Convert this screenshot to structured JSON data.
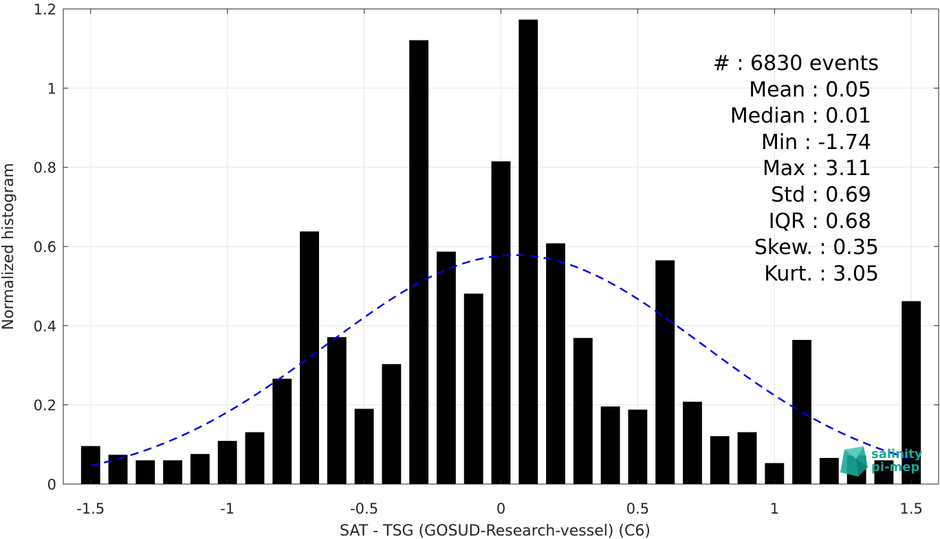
{
  "chart_data": {
    "type": "bar",
    "xlabel": "SAT - TSG (GOSUD-Research-vessel) (C6)",
    "ylabel": "Normalized histogram",
    "xlim": [
      -1.6,
      1.6
    ],
    "ylim": [
      0,
      1.2
    ],
    "x_ticks": [
      "-1.5",
      "-1",
      "-0.5",
      "0",
      "0.5",
      "1",
      "1.5"
    ],
    "x_tick_values": [
      -1.5,
      -1,
      -0.5,
      0,
      0.5,
      1,
      1.5
    ],
    "y_ticks": [
      "0",
      "0.2",
      "0.4",
      "0.6",
      "0.8",
      "1",
      "1.2"
    ],
    "y_tick_values": [
      0,
      0.2,
      0.4,
      0.6,
      0.8,
      1,
      1.2
    ],
    "grid": true,
    "bar_width": 0.07,
    "bars": [
      {
        "x": -1.5,
        "y": 0.096
      },
      {
        "x": -1.4,
        "y": 0.074
      },
      {
        "x": -1.3,
        "y": 0.06
      },
      {
        "x": -1.2,
        "y": 0.06
      },
      {
        "x": -1.1,
        "y": 0.076
      },
      {
        "x": -1.0,
        "y": 0.109
      },
      {
        "x": -0.9,
        "y": 0.131
      },
      {
        "x": -0.8,
        "y": 0.266
      },
      {
        "x": -0.7,
        "y": 0.638
      },
      {
        "x": -0.6,
        "y": 0.371
      },
      {
        "x": -0.5,
        "y": 0.19
      },
      {
        "x": -0.4,
        "y": 0.303
      },
      {
        "x": -0.3,
        "y": 1.121
      },
      {
        "x": -0.2,
        "y": 0.587
      },
      {
        "x": -0.1,
        "y": 0.481
      },
      {
        "x": 0.0,
        "y": 0.815
      },
      {
        "x": 0.1,
        "y": 1.173
      },
      {
        "x": 0.2,
        "y": 0.608
      },
      {
        "x": 0.3,
        "y": 0.369
      },
      {
        "x": 0.4,
        "y": 0.196
      },
      {
        "x": 0.5,
        "y": 0.188
      },
      {
        "x": 0.6,
        "y": 0.565
      },
      {
        "x": 0.7,
        "y": 0.208
      },
      {
        "x": 0.8,
        "y": 0.121
      },
      {
        "x": 0.9,
        "y": 0.131
      },
      {
        "x": 1.0,
        "y": 0.053
      },
      {
        "x": 1.1,
        "y": 0.364
      },
      {
        "x": 1.2,
        "y": 0.066
      },
      {
        "x": 1.3,
        "y": 0.072
      },
      {
        "x": 1.4,
        "y": 0.06
      },
      {
        "x": 1.5,
        "y": 0.462
      }
    ],
    "fit_curve": {
      "style": "dashed",
      "color": "#0000e6",
      "mean": 0.05,
      "std": 0.69,
      "x_range": [
        -1.5,
        1.5
      ]
    },
    "bar_color": "#000000",
    "stats": [
      "#  : 6830 events",
      "Mean : 0.05",
      "Median : 0.01",
      "Min : -1.74",
      "Max : 3.11",
      "Std : 0.69",
      "IQR : 0.68",
      "Skew. : 0.35",
      "Kurt. : 3.05"
    ]
  },
  "logo": {
    "line1": "salinity",
    "line2": "pi-mep",
    "color": "#1aa89a"
  }
}
